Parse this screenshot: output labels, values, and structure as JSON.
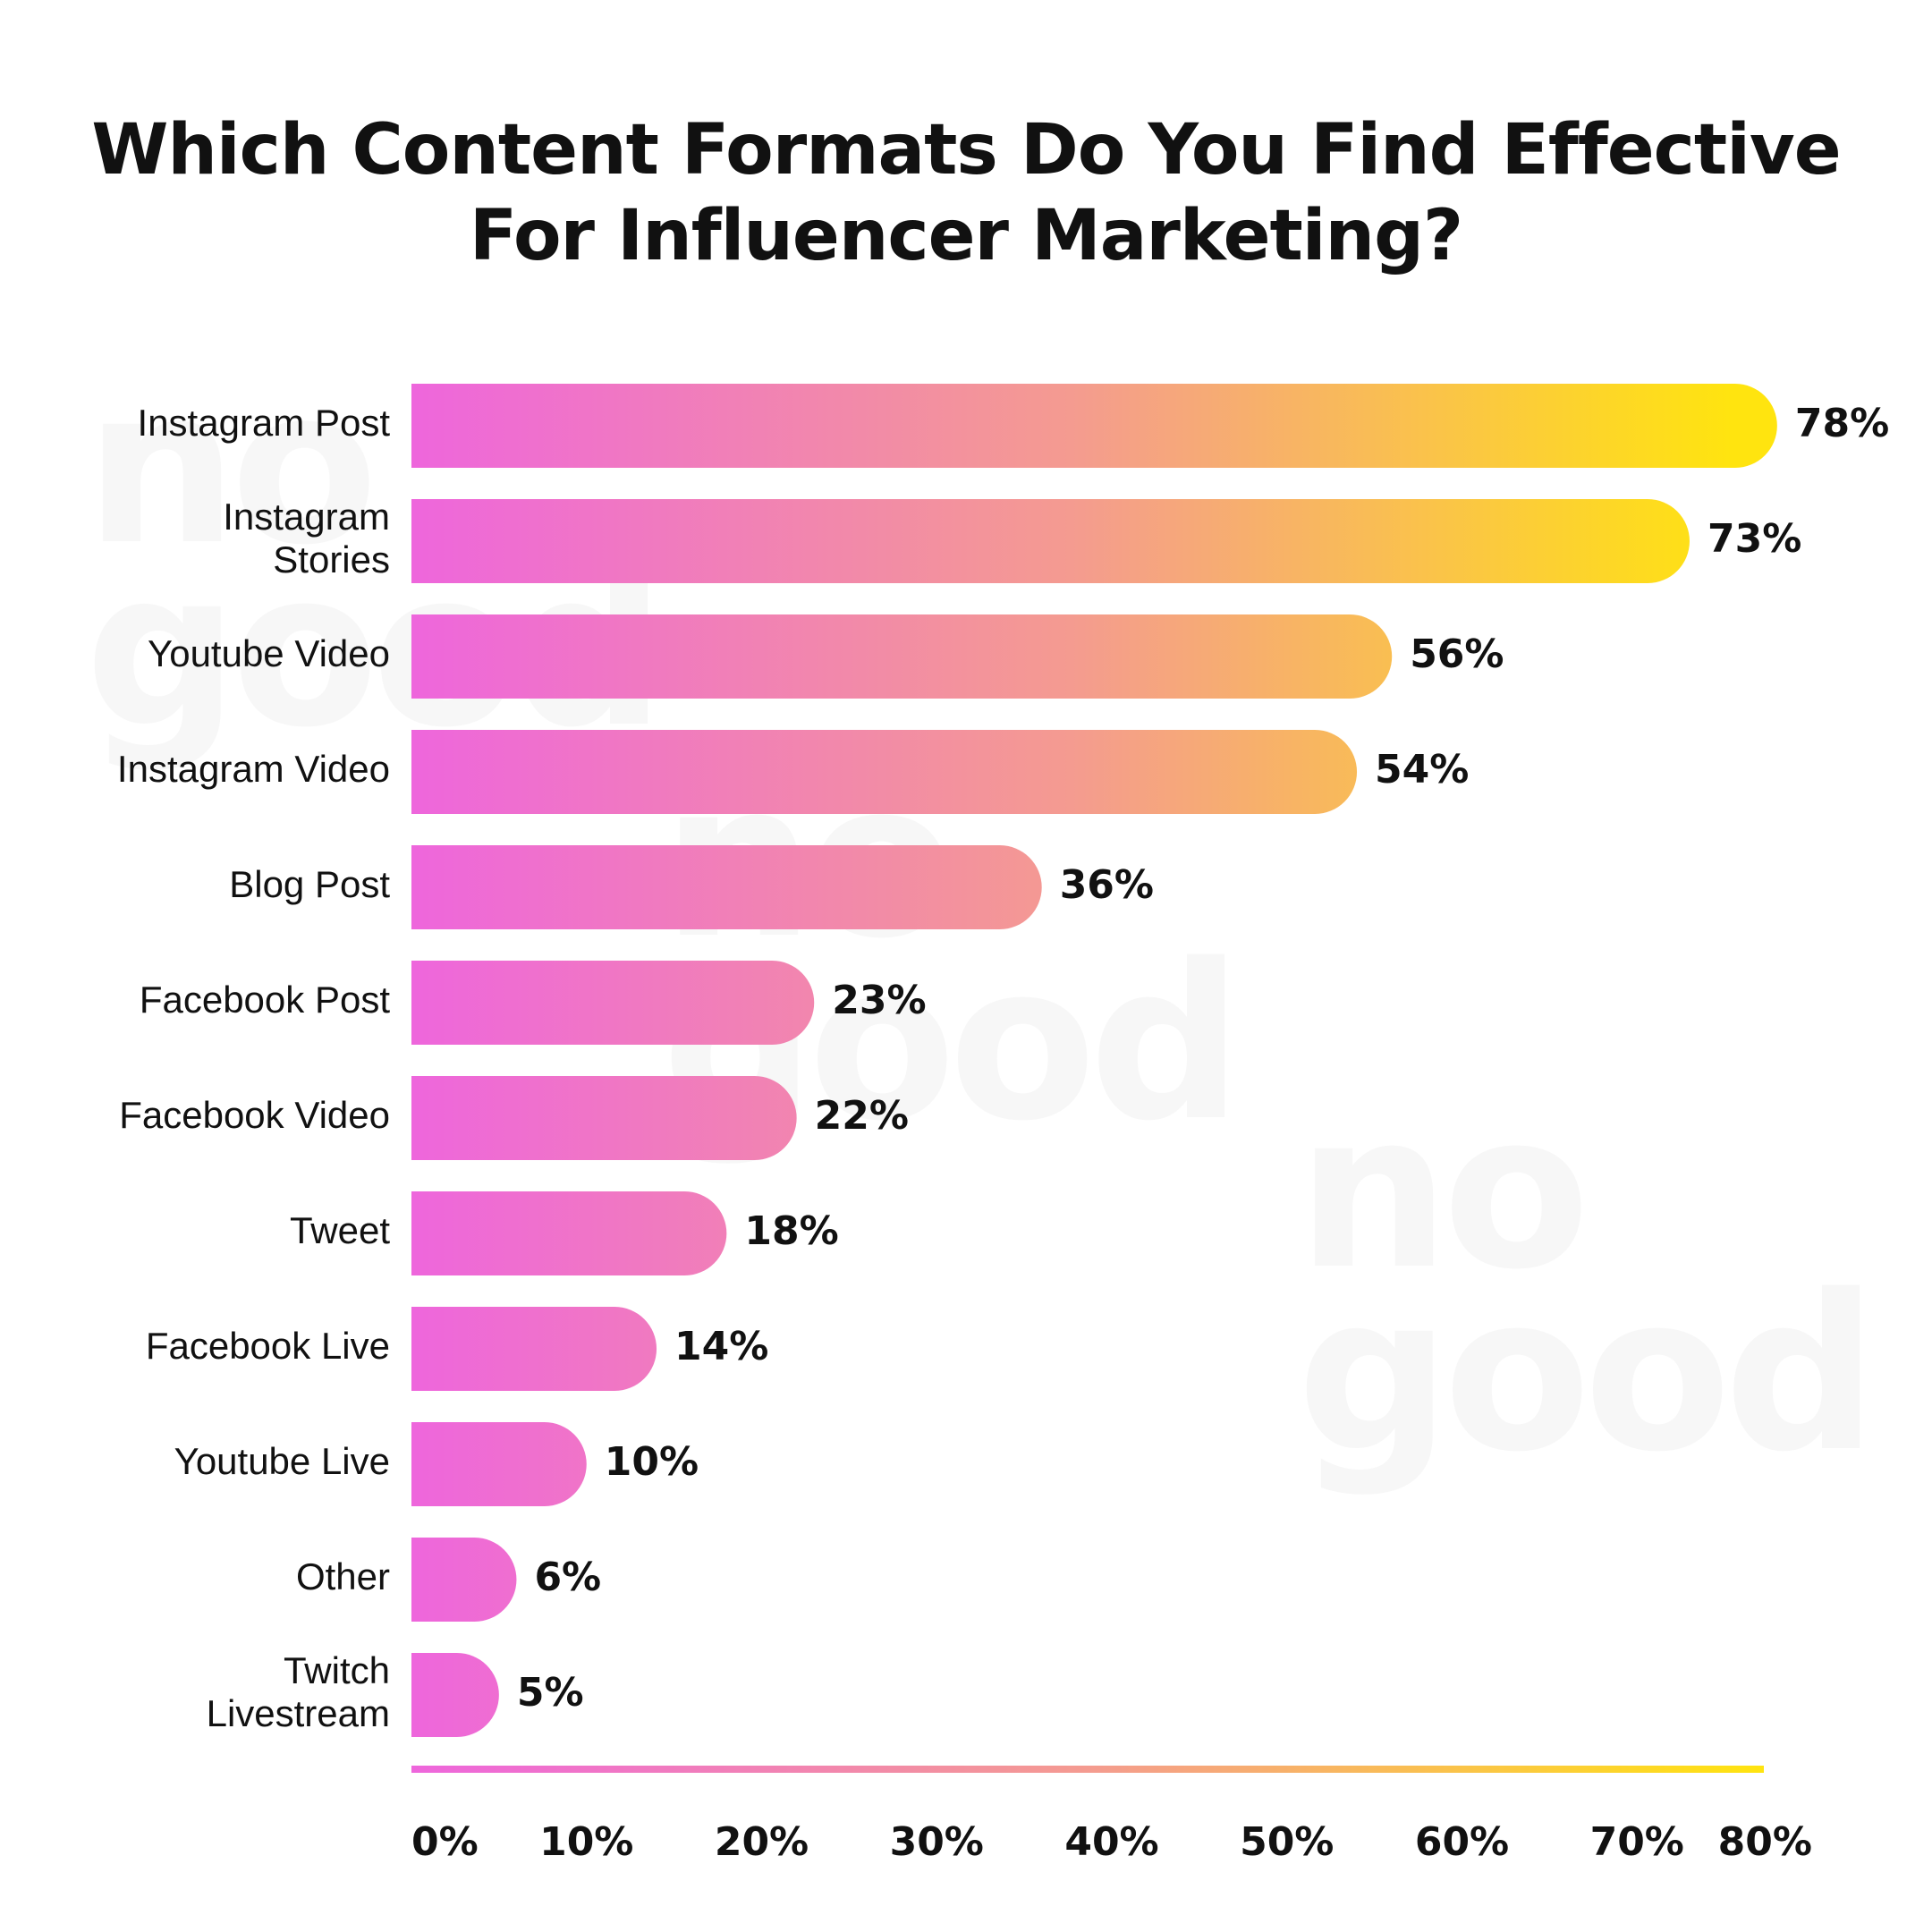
{
  "watermarks": [
    {
      "line1": "no",
      "line2": "good"
    },
    {
      "line1": "no",
      "line2": "good"
    },
    {
      "line1": "no",
      "line2": "good"
    }
  ],
  "colors": {
    "gradient_start": "#ee66dc",
    "gradient_mid": "#f49b90",
    "gradient_end": "#ffe40f",
    "text": "#111111"
  },
  "chart_data": {
    "type": "bar",
    "orientation": "horizontal",
    "title_lines": [
      "Which Content Formats Do You Find Effective",
      "For Influencer Marketing?"
    ],
    "categories": [
      "Instagram Post",
      "Instagram\nStories",
      "Youtube Video",
      "Instagram Video",
      "Blog Post",
      "Facebook Post",
      "Facebook Video",
      "Tweet",
      "Facebook Live",
      "Youtube Live",
      "Other",
      "Twitch\nLivestream"
    ],
    "values": [
      78,
      73,
      56,
      54,
      36,
      23,
      22,
      18,
      14,
      10,
      6,
      5
    ],
    "value_labels": [
      "78%",
      "73%",
      "56%",
      "54%",
      "36%",
      "23%",
      "22%",
      "18%",
      "14%",
      "10%",
      "6%",
      "5%"
    ],
    "x_ticks": [
      "0%",
      "10%",
      "20%",
      "30%",
      "40%",
      "50%",
      "60%",
      "70%",
      "80%"
    ],
    "xlim": [
      0,
      80
    ],
    "grid": false,
    "legend": "none"
  }
}
